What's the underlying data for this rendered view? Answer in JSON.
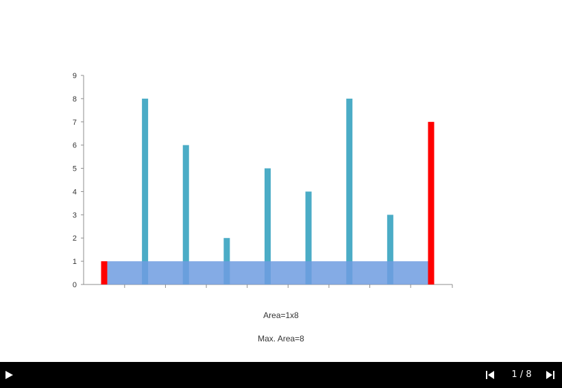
{
  "chart_data": {
    "type": "bar",
    "categories": [
      "",
      "",
      "",
      "",
      "",
      "",
      "",
      "",
      ""
    ],
    "values": [
      1,
      8,
      6,
      2,
      5,
      4,
      8,
      3,
      7
    ],
    "highlight_indices": [
      0,
      8
    ],
    "bar_color": "#4bacc6",
    "highlight_color": "#ff0000",
    "area_fill_color": "#6f9ce0",
    "area_height": 1,
    "ylim": [
      0,
      9
    ],
    "yticks": [
      "0",
      "1",
      "2",
      "3",
      "4",
      "5",
      "6",
      "7",
      "8",
      "9"
    ],
    "title": "",
    "xlabel": "",
    "ylabel": "",
    "grid": false
  },
  "captions": {
    "area": "Area=1x8",
    "max_area": "Max. Area=8"
  },
  "player": {
    "play_icon": "play-icon",
    "prev_icon": "skip-previous-icon",
    "next_icon": "skip-next-icon",
    "page_counter": "1 / 8"
  }
}
